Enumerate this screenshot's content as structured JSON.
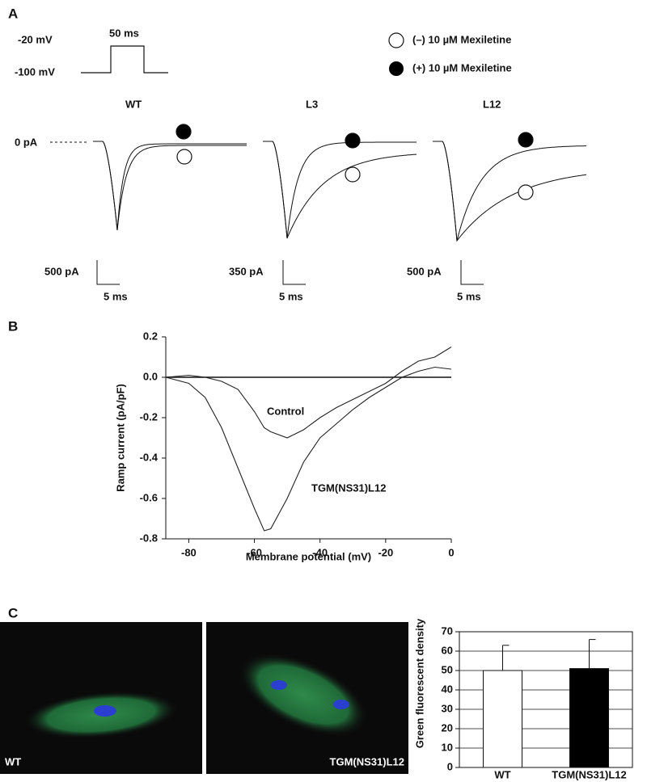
{
  "panel_labels": [
    "A",
    "B",
    "C"
  ],
  "protocol": {
    "labels": [
      "-20 mV",
      "-100 mV",
      "50 ms"
    ]
  },
  "legend": [
    "(–) 10 µM Mexiletine",
    "(+) 10 µM Mexiletine"
  ],
  "traces": {
    "baseline_label": "0 pA",
    "titles": [
      "WT",
      "L3",
      "L12"
    ],
    "scale_bars": [
      {
        "current": "500 pA",
        "time": "5 ms"
      },
      {
        "current": "350 pA",
        "time": "5 ms"
      },
      {
        "current": "500 pA",
        "time": "5 ms"
      }
    ]
  },
  "chart_data": [
    {
      "type": "line",
      "xlabel": "Membrane potential (mV)",
      "ylabel": "Ramp current (pA/pF)",
      "x": [
        -87,
        -80,
        -75,
        -70,
        -65,
        -60,
        -57,
        -55,
        -50,
        -45,
        -40,
        -35,
        -30,
        -25,
        -20,
        -15,
        -10,
        -5,
        0
      ],
      "series": [
        {
          "name": "Control",
          "color": "#222222",
          "values": [
            0,
            0.01,
            0,
            -0.02,
            -0.06,
            -0.17,
            -0.25,
            -0.27,
            -0.3,
            -0.26,
            -0.2,
            -0.15,
            -0.11,
            -0.07,
            -0.03,
            0.03,
            0.08,
            0.1,
            0.15
          ]
        },
        {
          "name": "TGM(NS31)L12",
          "color": "#222222",
          "values": [
            0,
            -0.03,
            -0.1,
            -0.25,
            -0.45,
            -0.65,
            -0.76,
            -0.75,
            -0.6,
            -0.42,
            -0.3,
            -0.23,
            -0.16,
            -0.1,
            -0.05,
            0,
            0.03,
            0.05,
            0.04
          ]
        }
      ],
      "xlim": [
        -87,
        0
      ],
      "xticks": [
        -80,
        -60,
        -40,
        -20,
        0
      ],
      "ylim": [
        -0.8,
        0.2
      ],
      "yticks": [
        0.2,
        {
          "value": 0,
          "label": "0.0"
        },
        -0.2,
        -0.4,
        -0.6,
        -0.8
      ]
    },
    {
      "type": "bar",
      "ylabel": "Green fluorescent density",
      "categories": [
        "WT",
        "TGM(NS31)L12"
      ],
      "values": [
        50,
        51
      ],
      "errors": [
        13,
        15
      ],
      "colors": [
        "#ffffff",
        "#000000"
      ],
      "ylim": [
        0,
        70
      ],
      "yticks": [
        0,
        10,
        20,
        30,
        40,
        50,
        60,
        70
      ],
      "grid": true
    }
  ],
  "images": {
    "labels": [
      "WT",
      "TGM(NS31)L12"
    ]
  }
}
